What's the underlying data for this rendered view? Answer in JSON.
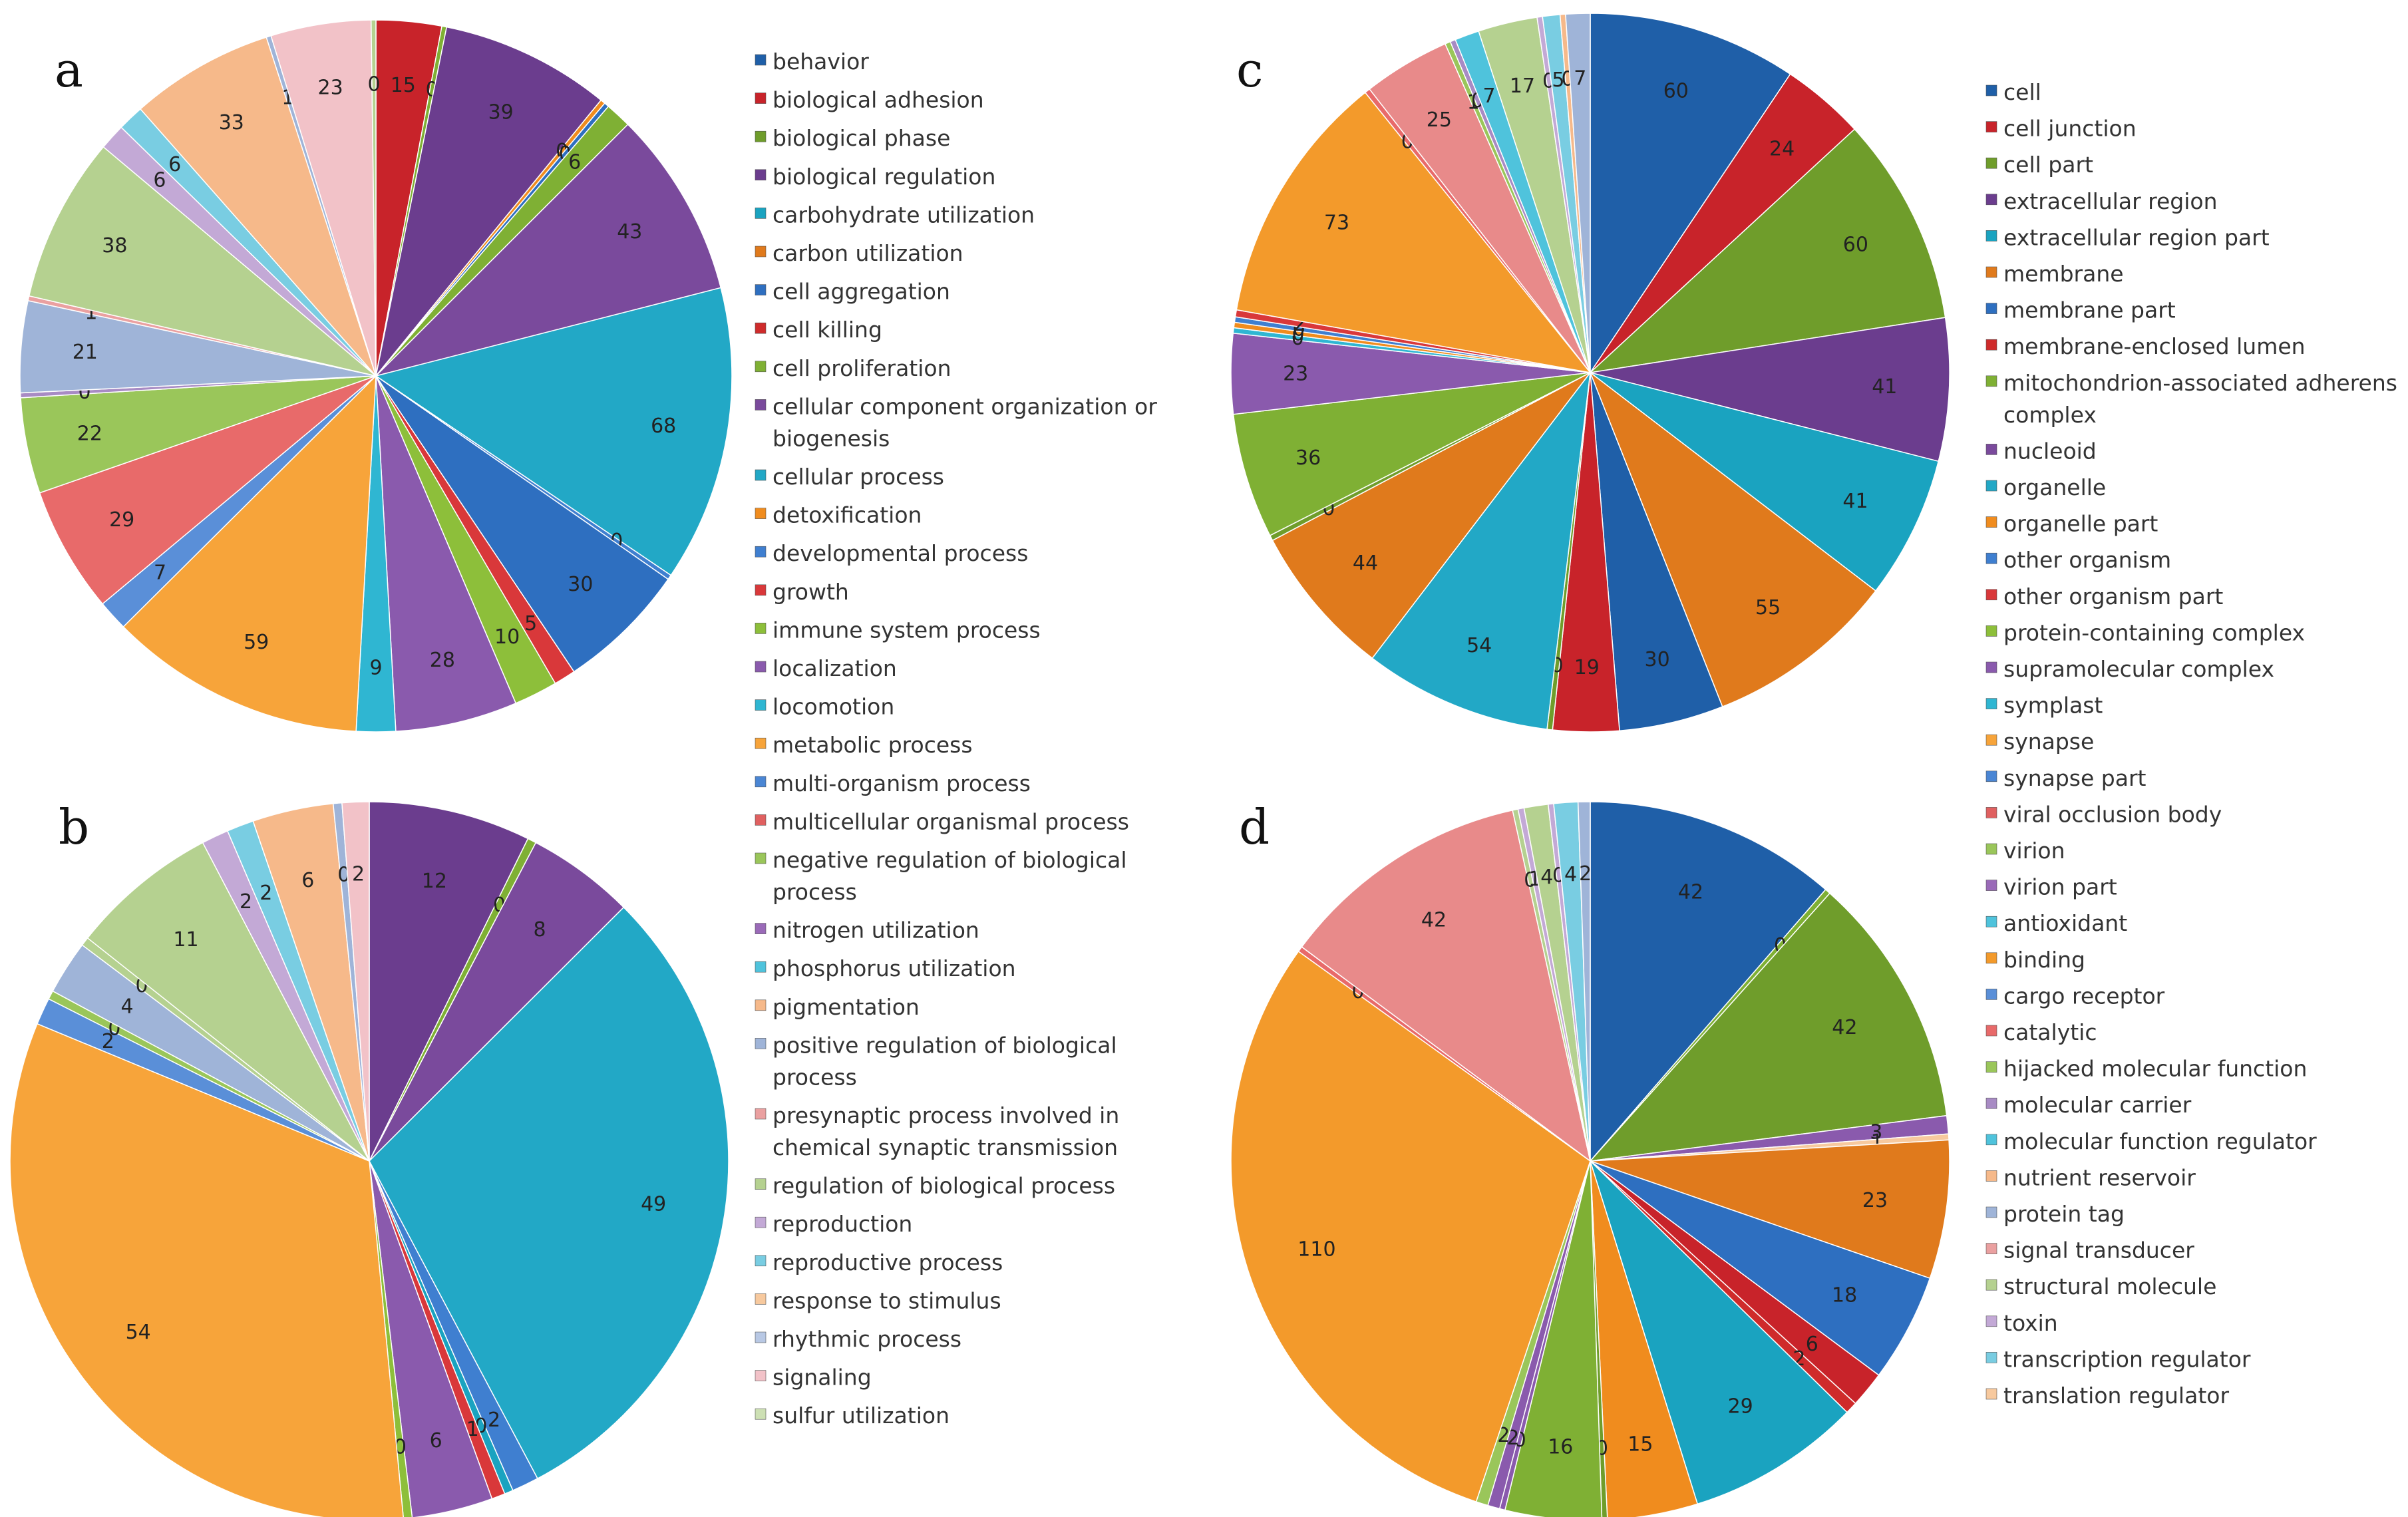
{
  "palette": [
    "#1f5fa8",
    "#c8232a",
    "#6f9d2b",
    "#6b3d8e",
    "#1aa3c0",
    "#f08c1e",
    "#2e6fc0",
    "#cf2b2b",
    "#7fb034",
    "#7a4a9c",
    "#22a8c6",
    "#f39a2b",
    "#3f7fd0",
    "#d9383a",
    "#8dbf3a",
    "#8a5aad",
    "#2fb6d2",
    "#f7a43a",
    "#5a8fd8",
    "#e86a6a",
    "#9ac65a",
    "#a88bc4",
    "#4fc3dc",
    "#f6b98a",
    "#9fb4d8",
    "#eaa0a0",
    "#b5d190",
    "#c3a9d6",
    "#79cde2",
    "#f7c99e"
  ],
  "chart_data": [
    {
      "type": "pie",
      "panel": "a",
      "values": [
        15,
        0,
        39,
        0,
        0,
        6,
        43,
        68,
        0,
        30,
        5,
        10,
        28,
        9,
        59,
        7,
        29,
        22,
        0,
        21,
        1,
        38,
        6,
        6,
        33,
        1,
        23,
        0
      ],
      "labels": [
        "15",
        "0",
        "39",
        "0",
        "0",
        "6",
        "43",
        "68",
        "0",
        "30",
        "5",
        "10",
        "28",
        "9",
        "59",
        "7",
        "29",
        "22",
        "0",
        "21",
        "1",
        "38",
        "6",
        "6",
        "33",
        "1",
        "23",
        "0"
      ],
      "colors": [
        "#c8232a",
        "#7fb034",
        "#6b3d8e",
        "#f08c1e",
        "#2e6fc0",
        "#7fb034",
        "#7a4a9c",
        "#22a8c6",
        "#3f7fd0",
        "#2e6fc0",
        "#d9383a",
        "#8dbf3a",
        "#8a5aad",
        "#2fb6d2",
        "#f7a43a",
        "#5a8fd8",
        "#e86a6a",
        "#9ac65a",
        "#a88bc4",
        "#9fb4d8",
        "#eaa0a0",
        "#b5d190",
        "#c3a9d6",
        "#79cde2",
        "#f6b98a",
        "#9fb4d8",
        "#f2c2c8",
        "#b5d190"
      ]
    },
    {
      "type": "pie",
      "panel": "b",
      "values": [
        12,
        0,
        8,
        49,
        2,
        0,
        1,
        6,
        0,
        54,
        2,
        0,
        4,
        0,
        11,
        2,
        2,
        6,
        0,
        2
      ],
      "labels": [
        "12",
        "0",
        "8",
        "49",
        "2",
        "0",
        "1",
        "6",
        "0",
        "54",
        "2",
        "0",
        "4",
        "0",
        "11",
        "2",
        "2",
        "6",
        "0",
        "2"
      ],
      "colors": [
        "#6b3d8e",
        "#7fb034",
        "#7a4a9c",
        "#22a8c6",
        "#3f7fd0",
        "#1aa3c0",
        "#d9383a",
        "#8a5aad",
        "#8dbf3a",
        "#f7a43a",
        "#5a8fd8",
        "#9ac65a",
        "#9fb4d8",
        "#b5d190",
        "#b5d190",
        "#c3a9d6",
        "#79cde2",
        "#f6b98a",
        "#9fb4d8",
        "#f2c2c8"
      ]
    },
    {
      "type": "pie",
      "panel": "c",
      "values": [
        60,
        24,
        60,
        41,
        41,
        55,
        30,
        19,
        0,
        54,
        44,
        0,
        36,
        23,
        0,
        0,
        0,
        2,
        73,
        0,
        25,
        1,
        0,
        7,
        17,
        0,
        5,
        0,
        7
      ],
      "labels": [
        "60",
        "24",
        "60",
        "41",
        "41",
        "55",
        "30",
        "19",
        "0",
        "54",
        "44",
        "0",
        "36",
        "23",
        "0",
        "0",
        "0",
        "2",
        "73",
        "0",
        "25",
        "1",
        "0",
        "7",
        "17",
        "0",
        "5",
        "0",
        "7"
      ],
      "colors": [
        "#1f5fa8",
        "#c8232a",
        "#6f9d2b",
        "#6b3d8e",
        "#1aa3c0",
        "#e07a1c",
        "#1f5fa8",
        "#c8232a",
        "#6f9d2b",
        "#22a8c6",
        "#e07a1c",
        "#6f9d2b",
        "#7fb034",
        "#8a5aad",
        "#2fb6d2",
        "#f08c1e",
        "#3f7fd0",
        "#d9383a",
        "#f39a2b",
        "#e86a6a",
        "#e88a8a",
        "#9ac65a",
        "#a88bc4",
        "#4fc3dc",
        "#b5d190",
        "#c3a9d6",
        "#79cde2",
        "#f6b98a",
        "#9fb4d8"
      ]
    },
    {
      "type": "pie",
      "panel": "d",
      "values": [
        42,
        0,
        42,
        3,
        1,
        23,
        18,
        6,
        2,
        29,
        15,
        0,
        16,
        0,
        2,
        2,
        110,
        0,
        42,
        0,
        1,
        4,
        0,
        4,
        2
      ],
      "labels": [
        "42",
        "0",
        "42",
        "3",
        "1",
        "23",
        "18",
        "6",
        "2",
        "29",
        "15",
        "0",
        "16",
        "0",
        "2",
        "2",
        "110",
        "0",
        "42",
        "0",
        "1",
        "4",
        "0",
        "4",
        "2"
      ],
      "colors": [
        "#1f5fa8",
        "#7fb034",
        "#6f9d2b",
        "#8a5aad",
        "#f7c99e",
        "#e07a1c",
        "#2e6fc0",
        "#c8232a",
        "#cf2b2b",
        "#1aa3c0",
        "#f08c1e",
        "#6f9d2b",
        "#7fb034",
        "#8a5aad",
        "#8a5aad",
        "#9ac65a",
        "#f39a2b",
        "#e86a6a",
        "#e88a8a",
        "#b5d190",
        "#c3a9d6",
        "#b5d190",
        "#c3a9d6",
        "#79cde2",
        "#9fb4d8"
      ]
    }
  ],
  "panels": {
    "a": "a",
    "b": "b",
    "c": "c",
    "d": "d"
  },
  "legend_left": [
    {
      "label": "behavior",
      "color": "#1f5fa8"
    },
    {
      "label": "biological adhesion",
      "color": "#c8232a"
    },
    {
      "label": "biological phase",
      "color": "#6f9d2b"
    },
    {
      "label": "biological regulation",
      "color": "#6b3d8e"
    },
    {
      "label": "carbohydrate utilization",
      "color": "#1aa3c0"
    },
    {
      "label": "carbon utilization",
      "color": "#e07a1c"
    },
    {
      "label": "cell aggregation",
      "color": "#2e6fc0"
    },
    {
      "label": "cell killing",
      "color": "#cf2b2b"
    },
    {
      "label": "cell proliferation",
      "color": "#7fb034"
    },
    {
      "label": "cellular component organization or",
      "label2": "biogenesis",
      "color": "#7a4a9c"
    },
    {
      "label": "cellular process",
      "color": "#22a8c6"
    },
    {
      "label": "detoxification",
      "color": "#f08c1e"
    },
    {
      "label": "developmental process",
      "color": "#3f7fd0"
    },
    {
      "label": "growth",
      "color": "#d9383a"
    },
    {
      "label": "immune system process",
      "color": "#8dbf3a"
    },
    {
      "label": "localization",
      "color": "#8a5aad"
    },
    {
      "label": "locomotion",
      "color": "#2fb6d2"
    },
    {
      "label": "metabolic process",
      "color": "#f7a43a"
    },
    {
      "label": "multi-organism process",
      "color": "#4a86d4"
    },
    {
      "label": "multicellular organismal process",
      "color": "#e06060"
    },
    {
      "label": "negative regulation of biological",
      "label2": "process",
      "color": "#9ac65a"
    },
    {
      "label": "nitrogen utilization",
      "color": "#9a6ab8"
    },
    {
      "label": "phosphorus utilization",
      "color": "#4fc3dc"
    },
    {
      "label": "pigmentation",
      "color": "#f6b98a"
    },
    {
      "label": "positive regulation of biological",
      "label2": "process",
      "color": "#9fb4d8"
    },
    {
      "label": "presynaptic process involved in",
      "label2": "chemical synaptic transmission",
      "color": "#eaa0a0"
    },
    {
      "label": "regulation of biological process",
      "color": "#b5d190"
    },
    {
      "label": "reproduction",
      "color": "#c3a9d6"
    },
    {
      "label": "reproductive process",
      "color": "#79cde2"
    },
    {
      "label": "response to stimulus",
      "color": "#f7c99e"
    },
    {
      "label": "rhythmic process",
      "color": "#b8c8e4"
    },
    {
      "label": "signaling",
      "color": "#f2c2c8"
    },
    {
      "label": "sulfur utilization",
      "color": "#cde0b4"
    }
  ],
  "legend_right": [
    {
      "label": "cell",
      "color": "#1f5fa8"
    },
    {
      "label": "cell junction",
      "color": "#c8232a"
    },
    {
      "label": "cell part",
      "color": "#6f9d2b"
    },
    {
      "label": "extracellular region",
      "color": "#6b3d8e"
    },
    {
      "label": "extracellular region part",
      "color": "#1aa3c0"
    },
    {
      "label": "membrane",
      "color": "#e07a1c"
    },
    {
      "label": "membrane part",
      "color": "#2e6fc0"
    },
    {
      "label": "membrane-enclosed lumen",
      "color": "#cf2b2b"
    },
    {
      "label": "mitochondrion-associated adherens",
      "label2": "complex",
      "color": "#7fb034"
    },
    {
      "label": "nucleoid",
      "color": "#7a4a9c"
    },
    {
      "label": "organelle",
      "color": "#22a8c6"
    },
    {
      "label": "organelle part",
      "color": "#f08c1e"
    },
    {
      "label": "other organism",
      "color": "#3f7fd0"
    },
    {
      "label": "other organism part",
      "color": "#d9383a"
    },
    {
      "label": "protein-containing complex",
      "color": "#8dbf3a"
    },
    {
      "label": "supramolecular complex",
      "color": "#8a5aad"
    },
    {
      "label": "symplast",
      "color": "#2fb6d2"
    },
    {
      "label": "synapse",
      "color": "#f7a43a"
    },
    {
      "label": "synapse part",
      "color": "#4a86d4"
    },
    {
      "label": "viral occlusion body",
      "color": "#e06060"
    },
    {
      "label": "virion",
      "color": "#9ac65a"
    },
    {
      "label": "virion part",
      "color": "#9a6ab8"
    },
    {
      "label": "antioxidant",
      "color": "#4fc3dc"
    },
    {
      "label": "binding",
      "color": "#f39a2b"
    },
    {
      "label": "cargo receptor",
      "color": "#5a8fd8"
    },
    {
      "label": "catalytic",
      "color": "#e86a6a"
    },
    {
      "label": "hijacked molecular function",
      "color": "#9ac65a"
    },
    {
      "label": "molecular carrier",
      "color": "#a88bc4"
    },
    {
      "label": "molecular function regulator",
      "color": "#4fc3dc"
    },
    {
      "label": "nutrient reservoir",
      "color": "#f6b98a"
    },
    {
      "label": "protein tag",
      "color": "#9fb4d8"
    },
    {
      "label": "signal transducer",
      "color": "#eaa0a0"
    },
    {
      "label": "structural molecule",
      "color": "#b5d190"
    },
    {
      "label": "toxin",
      "color": "#c3a9d6"
    },
    {
      "label": "transcription regulator",
      "color": "#79cde2"
    },
    {
      "label": "translation regulator",
      "color": "#f7c99e"
    }
  ]
}
